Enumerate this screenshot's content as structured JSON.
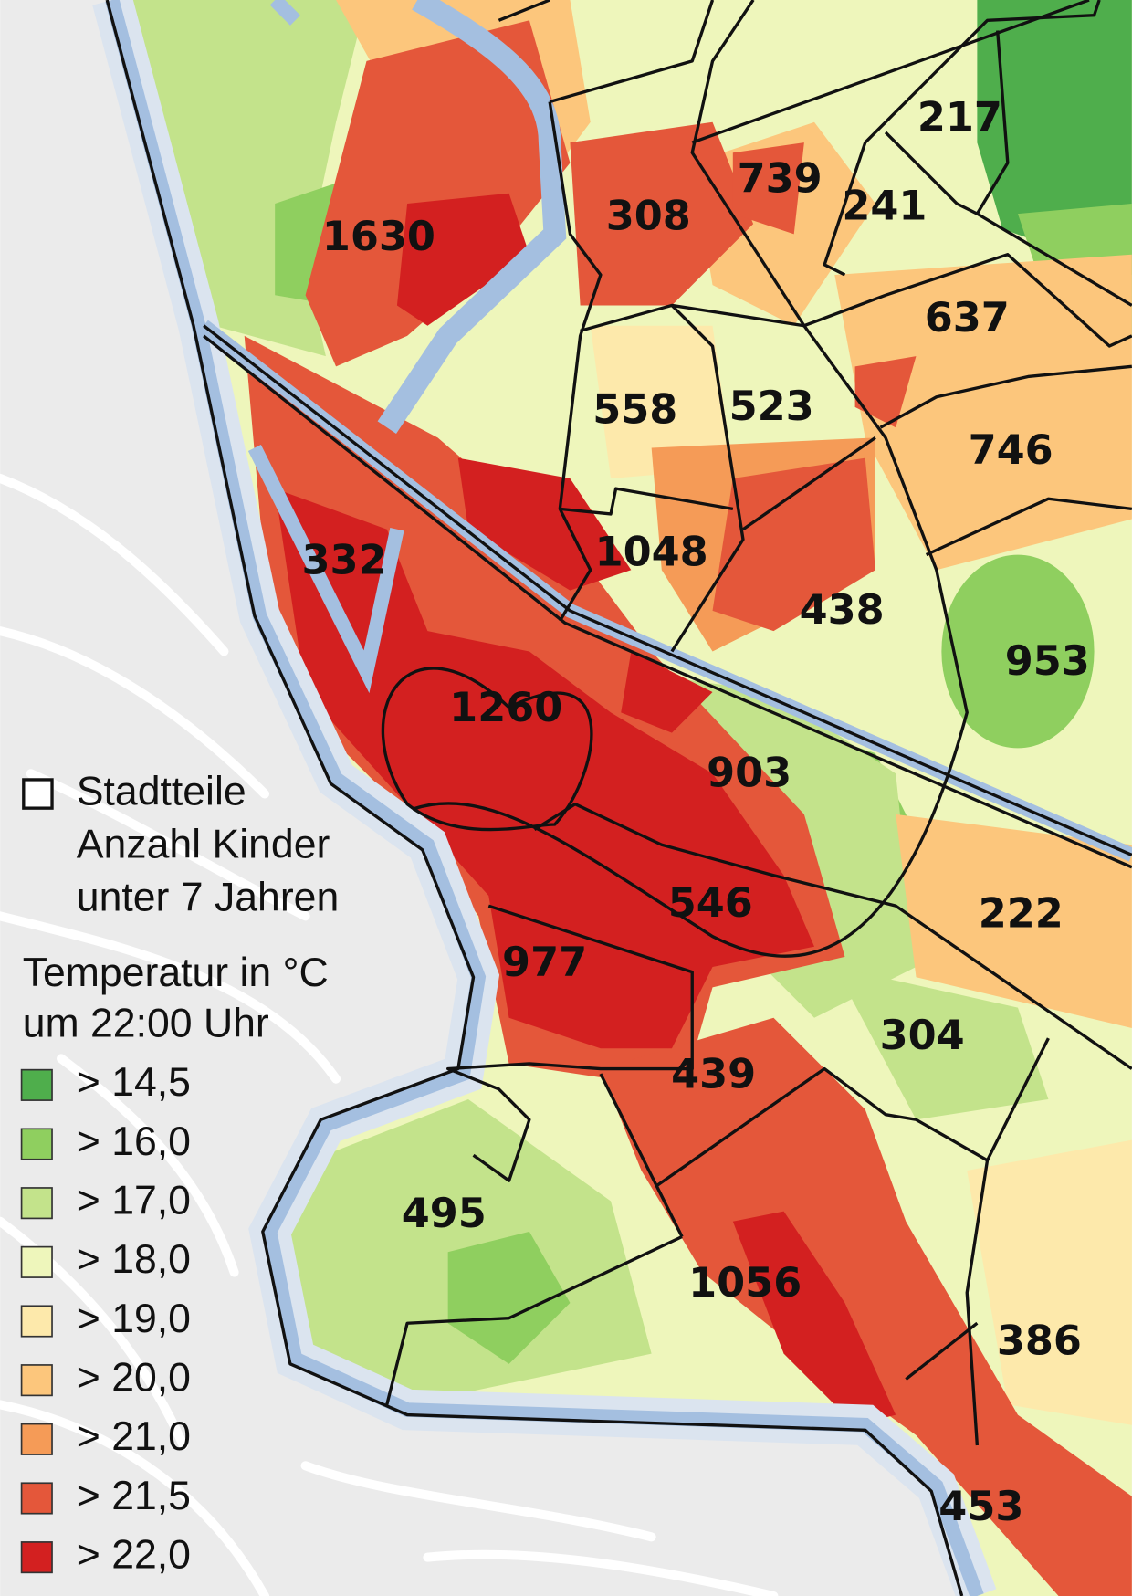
{
  "legend": {
    "districts": {
      "lines": [
        "Stadtteile",
        "Anzahl Kinder",
        "unter 7 Jahren"
      ]
    },
    "temperature": {
      "title_lines": [
        "Temperatur in °C",
        "um 22:00 Uhr"
      ],
      "classes": [
        {
          "label": "> 14,5",
          "color": "#4fae4c"
        },
        {
          "label": "> 16,0",
          "color": "#8fcf5f"
        },
        {
          "label": "> 17,0",
          "color": "#c3e38b"
        },
        {
          "label": "> 18,0",
          "color": "#eef6bb"
        },
        {
          "label": "> 19,0",
          "color": "#fde9ab"
        },
        {
          "label": "> 20,0",
          "color": "#fcc67c"
        },
        {
          "label": "> 21,0",
          "color": "#f59b57"
        },
        {
          "label": "> 21,5",
          "color": "#e4573a"
        },
        {
          "label": "> 22,0",
          "color": "#d32020"
        }
      ]
    }
  },
  "districts": [
    {
      "label": "1630"
    },
    {
      "label": "308"
    },
    {
      "label": "739"
    },
    {
      "label": "217"
    },
    {
      "label": "241"
    },
    {
      "label": "637"
    },
    {
      "label": "558"
    },
    {
      "label": "523"
    },
    {
      "label": "746"
    },
    {
      "label": "332"
    },
    {
      "label": "1048"
    },
    {
      "label": "438"
    },
    {
      "label": "953"
    },
    {
      "label": "1260"
    },
    {
      "label": "903"
    },
    {
      "label": "546"
    },
    {
      "label": "222"
    },
    {
      "label": "977"
    },
    {
      "label": "304"
    },
    {
      "label": "439"
    },
    {
      "label": "495"
    },
    {
      "label": "1056"
    },
    {
      "label": "386"
    },
    {
      "label": "453"
    }
  ]
}
